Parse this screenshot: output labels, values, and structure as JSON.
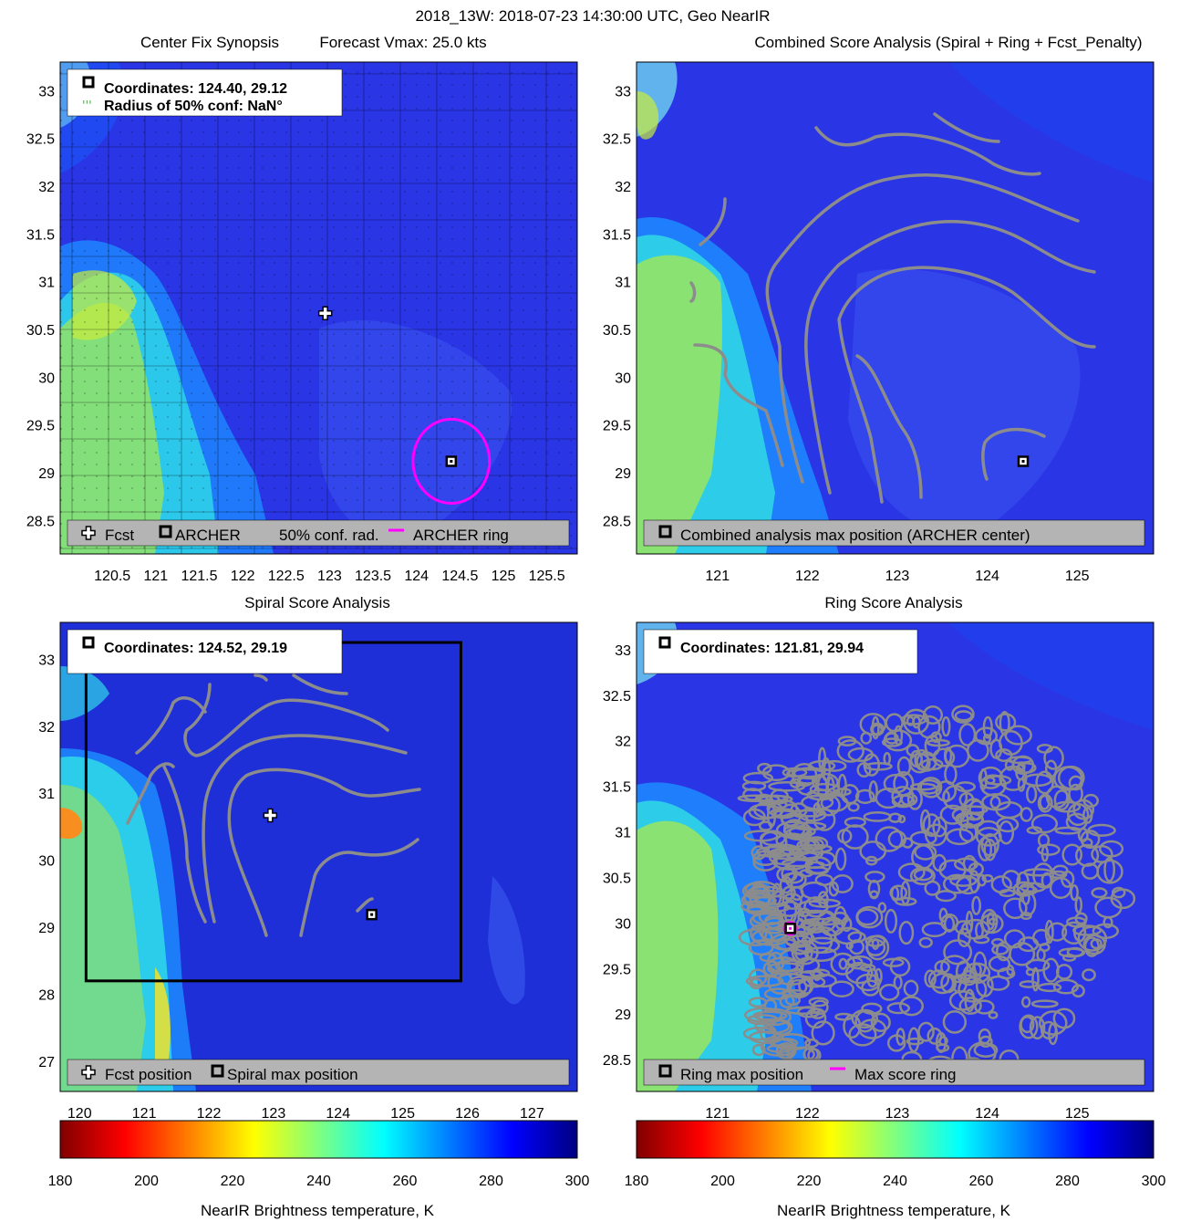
{
  "figure": {
    "suptitle": "2018_13W: 2018-07-23 14:30:00 UTC, Geo NearIR"
  },
  "panels": {
    "center_fix": {
      "title_left": "Center Fix Synopsis",
      "title_right": "Forecast Vmax: 25.0 kts",
      "info_line1": "Coordinates: 124.40, 29.12",
      "info_line2": "Radius of 50% conf: NaN°",
      "legend": [
        "Fcst",
        "ARCHER",
        "50% conf. rad.",
        "ARCHER ring"
      ]
    },
    "combined": {
      "title": "Combined Score Analysis (Spiral + Ring + Fcst_Penalty)",
      "legend": [
        "Combined analysis max position (ARCHER center)"
      ]
    },
    "spiral": {
      "title": "Spiral Score Analysis",
      "info_line1": "Coordinates: 124.52, 29.19",
      "legend": [
        "Fcst position",
        "Spiral max position"
      ]
    },
    "ring": {
      "title": "Ring Score Analysis",
      "info_line1": "Coordinates: 121.81, 29.94",
      "legend": [
        "Ring max position",
        "Max score ring"
      ]
    }
  },
  "colorbar": {
    "label": "NearIR Brightness temperature, K",
    "ticks": [
      180,
      200,
      220,
      240,
      260,
      280,
      300
    ]
  },
  "colors": {
    "contour": "#8c8c8c",
    "archer_ring": "#ff00ff",
    "legend_bg": "#b4b4b4"
  },
  "chart_data": [
    {
      "type": "heatmap",
      "title": "Center Fix Synopsis",
      "xlim": [
        119.9,
        125.85
      ],
      "ylim": [
        28.15,
        33.3
      ],
      "xticks": [
        120.5,
        121,
        121.5,
        122,
        122.5,
        123,
        123.5,
        124,
        124.5,
        125,
        125.5
      ],
      "yticks": [
        28.5,
        29,
        29.5,
        30,
        30.5,
        31,
        31.5,
        32,
        32.5,
        33
      ],
      "grid": true,
      "fcst_position": [
        122.95,
        30.67
      ],
      "archer_center": [
        124.4,
        29.12
      ],
      "archer_ring_radius_deg": 0.44
    },
    {
      "type": "heatmap",
      "title": "Combined Score Analysis (Spiral + Ring + Fcst_Penalty)",
      "xlim": [
        120.1,
        125.85
      ],
      "ylim": [
        28.15,
        33.3
      ],
      "xticks": [
        121,
        122,
        123,
        124,
        125
      ],
      "yticks": [
        28.5,
        29,
        29.5,
        30,
        30.5,
        31,
        31.5,
        32,
        32.5,
        33
      ],
      "max_position": [
        124.4,
        29.12
      ]
    },
    {
      "type": "heatmap",
      "title": "Spiral Score Analysis",
      "xlim": [
        119.7,
        127.7
      ],
      "ylim": [
        26.55,
        33.55
      ],
      "xticks": [
        120,
        121,
        122,
        123,
        124,
        125,
        126,
        127
      ],
      "yticks": [
        27,
        28,
        29,
        30,
        31,
        32,
        33
      ],
      "fcst_position": [
        122.95,
        30.67
      ],
      "spiral_max_position": [
        124.52,
        29.19
      ],
      "search_box": {
        "lon": [
          120.1,
          125.9
        ],
        "lat": [
          28.2,
          33.25
        ]
      }
    },
    {
      "type": "heatmap",
      "title": "Ring Score Analysis",
      "xlim": [
        120.1,
        125.85
      ],
      "ylim": [
        28.15,
        33.3
      ],
      "xticks": [
        121,
        122,
        123,
        124,
        125
      ],
      "yticks": [
        28.5,
        29,
        29.5,
        30,
        30.5,
        31,
        31.5,
        32,
        32.5,
        33
      ],
      "ring_max_position": [
        121.81,
        29.94
      ]
    },
    {
      "type": "colorbar",
      "label": "NearIR Brightness temperature, K",
      "range": [
        180,
        300
      ],
      "colormap": "jet"
    }
  ]
}
